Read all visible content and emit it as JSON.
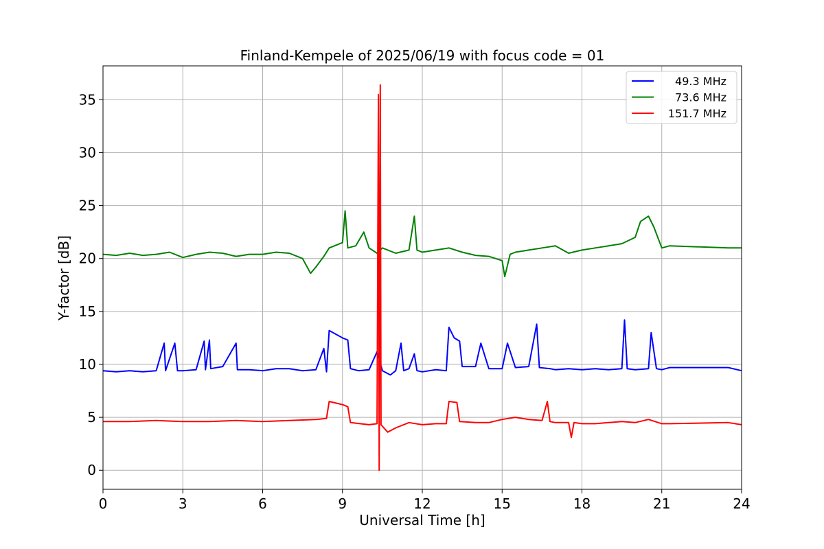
{
  "chart_data": {
    "type": "line",
    "title": "Finland-Kempele of 2025/06/19 with focus code = 01",
    "xlabel": "Universal Time [h]",
    "ylabel": "Y-factor [dB]",
    "xlim": [
      0,
      24
    ],
    "ylim": [
      -1.8,
      38.2
    ],
    "xticks": [
      "0",
      "3",
      "6",
      "9",
      "12",
      "15",
      "18",
      "21",
      "24"
    ],
    "yticks": [
      "0",
      "5",
      "10",
      "15",
      "20",
      "25",
      "30",
      "35"
    ],
    "grid": true,
    "legend_position": "upper right",
    "series": [
      {
        "name": "49.3 MHz",
        "color": "#0000ff",
        "points": [
          [
            0,
            9.4
          ],
          [
            0.5,
            9.3
          ],
          [
            1,
            9.4
          ],
          [
            1.5,
            9.3
          ],
          [
            2,
            9.4
          ],
          [
            2.3,
            12.0
          ],
          [
            2.35,
            9.4
          ],
          [
            2.7,
            12.0
          ],
          [
            2.8,
            9.4
          ],
          [
            3,
            9.4
          ],
          [
            3.5,
            9.5
          ],
          [
            3.8,
            12.2
          ],
          [
            3.85,
            9.5
          ],
          [
            4,
            12.3
          ],
          [
            4.05,
            9.6
          ],
          [
            4.5,
            9.8
          ],
          [
            5,
            12.0
          ],
          [
            5.05,
            9.5
          ],
          [
            5.5,
            9.5
          ],
          [
            6,
            9.4
          ],
          [
            6.5,
            9.6
          ],
          [
            7,
            9.6
          ],
          [
            7.5,
            9.4
          ],
          [
            8,
            9.5
          ],
          [
            8.3,
            11.5
          ],
          [
            8.4,
            9.3
          ],
          [
            8.5,
            13.2
          ],
          [
            9,
            12.5
          ],
          [
            9.2,
            12.3
          ],
          [
            9.3,
            9.6
          ],
          [
            9.6,
            9.4
          ],
          [
            10,
            9.5
          ],
          [
            10.3,
            11.2
          ],
          [
            10.5,
            9.4
          ],
          [
            10.8,
            9.0
          ],
          [
            11,
            9.4
          ],
          [
            11.2,
            12.0
          ],
          [
            11.3,
            9.4
          ],
          [
            11.5,
            9.6
          ],
          [
            11.7,
            11.0
          ],
          [
            11.8,
            9.4
          ],
          [
            12,
            9.3
          ],
          [
            12.5,
            9.5
          ],
          [
            12.9,
            9.4
          ],
          [
            13,
            13.5
          ],
          [
            13.2,
            12.5
          ],
          [
            13.4,
            12.2
          ],
          [
            13.5,
            9.8
          ],
          [
            14,
            9.8
          ],
          [
            14.2,
            12.0
          ],
          [
            14.5,
            9.6
          ],
          [
            15,
            9.6
          ],
          [
            15.2,
            12.0
          ],
          [
            15.5,
            9.7
          ],
          [
            16,
            9.8
          ],
          [
            16.3,
            13.8
          ],
          [
            16.4,
            9.7
          ],
          [
            16.8,
            9.6
          ],
          [
            17,
            9.5
          ],
          [
            17.5,
            9.6
          ],
          [
            18,
            9.5
          ],
          [
            18.5,
            9.6
          ],
          [
            19,
            9.5
          ],
          [
            19.5,
            9.6
          ],
          [
            19.6,
            14.2
          ],
          [
            19.7,
            9.6
          ],
          [
            20,
            9.5
          ],
          [
            20.5,
            9.6
          ],
          [
            20.6,
            13.0
          ],
          [
            20.8,
            9.6
          ],
          [
            21,
            9.5
          ],
          [
            21.3,
            9.7
          ],
          [
            23.5,
            9.7
          ],
          [
            24,
            9.4
          ]
        ]
      },
      {
        "name": "73.6 MHz",
        "color": "#008000",
        "points": [
          [
            0,
            20.4
          ],
          [
            0.5,
            20.3
          ],
          [
            1,
            20.5
          ],
          [
            1.5,
            20.3
          ],
          [
            2,
            20.4
          ],
          [
            2.5,
            20.6
          ],
          [
            3,
            20.1
          ],
          [
            3.5,
            20.4
          ],
          [
            4,
            20.6
          ],
          [
            4.5,
            20.5
          ],
          [
            5,
            20.2
          ],
          [
            5.5,
            20.4
          ],
          [
            6,
            20.4
          ],
          [
            6.5,
            20.6
          ],
          [
            7,
            20.5
          ],
          [
            7.5,
            20.0
          ],
          [
            7.8,
            18.6
          ],
          [
            8,
            19.2
          ],
          [
            8.3,
            20.2
          ],
          [
            8.5,
            21.0
          ],
          [
            9,
            21.5
          ],
          [
            9.1,
            24.5
          ],
          [
            9.2,
            21.0
          ],
          [
            9.5,
            21.2
          ],
          [
            9.8,
            22.5
          ],
          [
            10,
            21.0
          ],
          [
            10.3,
            20.5
          ],
          [
            10.5,
            21.0
          ],
          [
            11,
            20.5
          ],
          [
            11.5,
            20.8
          ],
          [
            11.7,
            24.0
          ],
          [
            11.8,
            20.8
          ],
          [
            12,
            20.6
          ],
          [
            12.5,
            20.8
          ],
          [
            13,
            21.0
          ],
          [
            13.5,
            20.6
          ],
          [
            14,
            20.3
          ],
          [
            14.5,
            20.2
          ],
          [
            15,
            19.8
          ],
          [
            15.1,
            18.3
          ],
          [
            15.3,
            20.4
          ],
          [
            15.5,
            20.6
          ],
          [
            16,
            20.8
          ],
          [
            16.5,
            21.0
          ],
          [
            17,
            21.2
          ],
          [
            17.5,
            20.5
          ],
          [
            18,
            20.8
          ],
          [
            18.5,
            21.0
          ],
          [
            19,
            21.2
          ],
          [
            19.5,
            21.4
          ],
          [
            20,
            22.0
          ],
          [
            20.2,
            23.5
          ],
          [
            20.5,
            24.0
          ],
          [
            20.7,
            23.0
          ],
          [
            21,
            21.0
          ],
          [
            21.3,
            21.2
          ],
          [
            23.5,
            21.0
          ],
          [
            24,
            21.0
          ]
        ]
      },
      {
        "name": "151.7 MHz",
        "color": "#ff0000",
        "points": [
          [
            0,
            4.6
          ],
          [
            1,
            4.6
          ],
          [
            2,
            4.7
          ],
          [
            3,
            4.6
          ],
          [
            4,
            4.6
          ],
          [
            5,
            4.7
          ],
          [
            6,
            4.6
          ],
          [
            7,
            4.7
          ],
          [
            8,
            4.8
          ],
          [
            8.4,
            4.9
          ],
          [
            8.5,
            6.5
          ],
          [
            9,
            6.2
          ],
          [
            9.2,
            6.0
          ],
          [
            9.3,
            4.5
          ],
          [
            10,
            4.3
          ],
          [
            10.3,
            4.4
          ],
          [
            10.35,
            35.5
          ],
          [
            10.38,
            0.0
          ],
          [
            10.42,
            36.4
          ],
          [
            10.45,
            4.3
          ],
          [
            10.7,
            3.6
          ],
          [
            11,
            4.0
          ],
          [
            11.5,
            4.5
          ],
          [
            12,
            4.3
          ],
          [
            12.5,
            4.4
          ],
          [
            12.9,
            4.4
          ],
          [
            13,
            6.5
          ],
          [
            13.3,
            6.4
          ],
          [
            13.4,
            4.6
          ],
          [
            14,
            4.5
          ],
          [
            14.5,
            4.5
          ],
          [
            15,
            4.8
          ],
          [
            15.5,
            5.0
          ],
          [
            16,
            4.8
          ],
          [
            16.5,
            4.7
          ],
          [
            16.7,
            6.5
          ],
          [
            16.8,
            4.6
          ],
          [
            17,
            4.5
          ],
          [
            17.5,
            4.5
          ],
          [
            17.6,
            3.1
          ],
          [
            17.7,
            4.5
          ],
          [
            18,
            4.4
          ],
          [
            18.5,
            4.4
          ],
          [
            19,
            4.5
          ],
          [
            19.5,
            4.6
          ],
          [
            20,
            4.5
          ],
          [
            20.5,
            4.8
          ],
          [
            21,
            4.4
          ],
          [
            21.3,
            4.4
          ],
          [
            23.5,
            4.5
          ],
          [
            24,
            4.3
          ]
        ]
      }
    ]
  }
}
